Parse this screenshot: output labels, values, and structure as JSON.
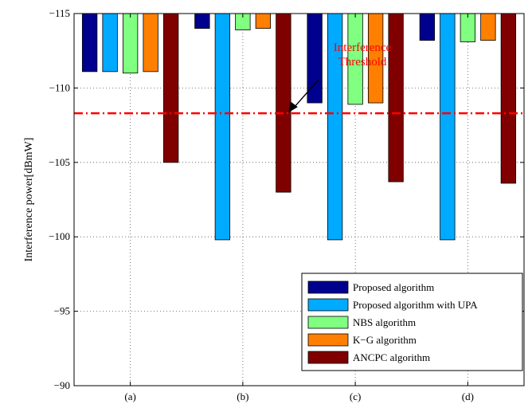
{
  "chart_data": {
    "type": "bar",
    "categories": [
      "(a)",
      "(b)",
      "(c)",
      "(d)"
    ],
    "ylabel": "Interference power[dBmW]",
    "ylim": [
      -115,
      -90
    ],
    "y_axis_reversed": true,
    "yticks": [
      -115,
      -110,
      -105,
      -100,
      -95,
      -90
    ],
    "ytick_labels": [
      "−115",
      "−110",
      "−105",
      "−100",
      "−95",
      "−90"
    ],
    "grid": "dotted",
    "series": [
      {
        "name": "Proposed algorithm",
        "color": "#00008f",
        "values": [
          -111.1,
          -114,
          -109,
          -113.2
        ]
      },
      {
        "name": "Proposed algorithm with UPA",
        "color": "#00aaff",
        "values": [
          -111.1,
          -99.8,
          -99.8,
          -99.8
        ]
      },
      {
        "name": "NBS algorithm",
        "color": "#80ff80",
        "values": [
          -111,
          -113.9,
          -108.9,
          -113.1
        ]
      },
      {
        "name": "K−G algorithm",
        "color": "#ff7f00",
        "values": [
          -111.1,
          -114,
          -109,
          -113.2
        ]
      },
      {
        "name": "ANCPC algorithm",
        "color": "#800000",
        "values": [
          -105,
          -103,
          -103.7,
          -103.6
        ]
      }
    ],
    "threshold": {
      "value": -108.3,
      "color": "#ff0000",
      "style": "dash-dot"
    },
    "annotation": {
      "lines": [
        "Interference",
        "Threshold"
      ],
      "color": "#ff0000"
    },
    "legend_placement": "bottom-right"
  }
}
